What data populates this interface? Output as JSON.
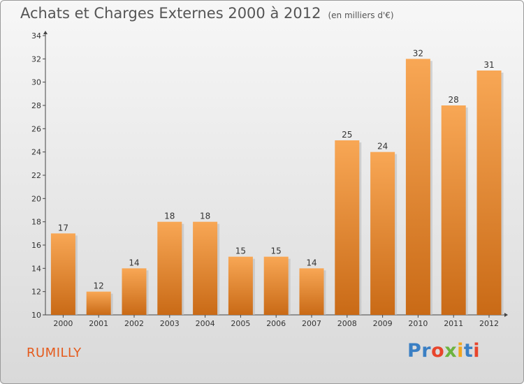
{
  "title": "Achats et Charges Externes 2000 à 2012",
  "unit_note": "(en milliers d'€)",
  "city": "RUMILLY",
  "logo": {
    "text": "Proxiti",
    "letters": [
      {
        "char": "P",
        "color": "#3a7fc4"
      },
      {
        "char": "r",
        "color": "#3a7fc4"
      },
      {
        "char": "o",
        "color": "#e8452c"
      },
      {
        "char": "x",
        "color": "#6cb33f"
      },
      {
        "char": "i",
        "color": "#f2a61d"
      },
      {
        "char": "t",
        "color": "#3a7fc4"
      },
      {
        "char": "i",
        "color": "#e8452c"
      }
    ]
  },
  "colors": {
    "bar_top": "#f8a755",
    "bar_bottom": "#c96a16",
    "city": "#e55a1c"
  },
  "chart_data": {
    "type": "bar",
    "categories": [
      "2000",
      "2001",
      "2002",
      "2003",
      "2004",
      "2005",
      "2006",
      "2007",
      "2008",
      "2009",
      "2010",
      "2011",
      "2012"
    ],
    "values": [
      17,
      12,
      14,
      18,
      18,
      15,
      15,
      14,
      25,
      24,
      32,
      28,
      31
    ],
    "ylim": [
      10,
      34
    ],
    "yticks": [
      10,
      12,
      14,
      16,
      18,
      20,
      22,
      24,
      26,
      28,
      30,
      32,
      34
    ],
    "grid": false,
    "legend": "none"
  }
}
